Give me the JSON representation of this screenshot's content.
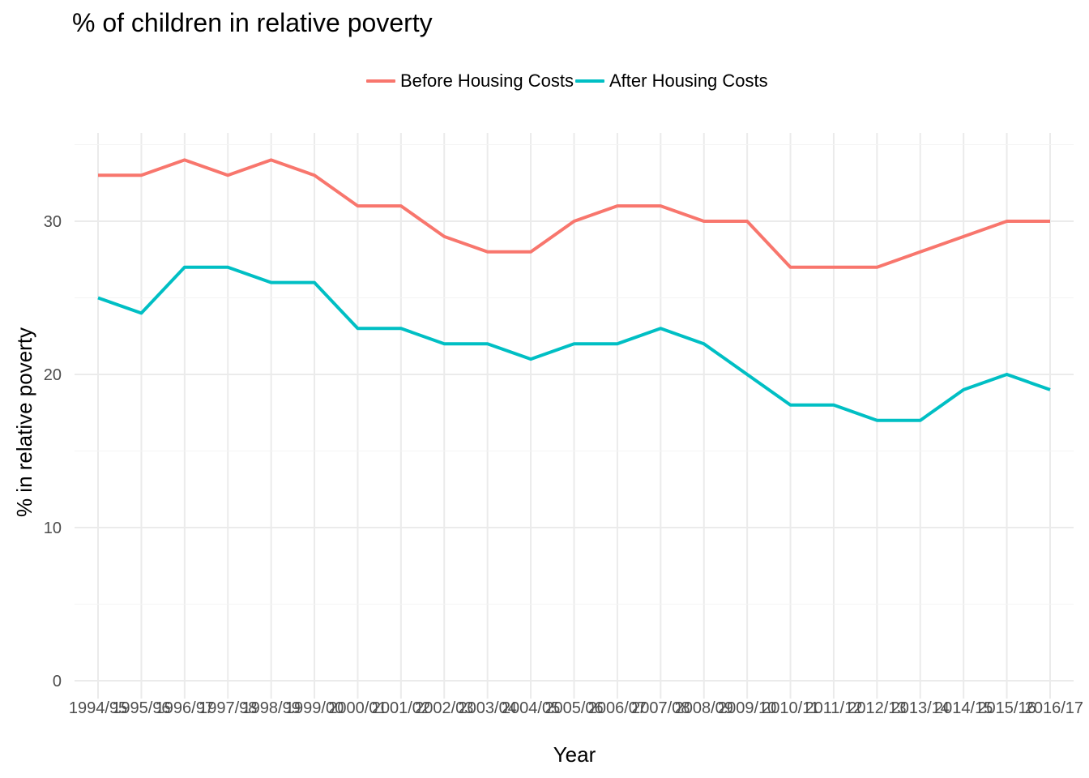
{
  "chart_data": {
    "type": "line",
    "title": "% of children in relative poverty",
    "xlabel": "Year",
    "ylabel": "% in relative poverty",
    "categories": [
      "1994/95",
      "1995/96",
      "1996/97",
      "1997/98",
      "1998/99",
      "1999/00",
      "2000/01",
      "2001/02",
      "2002/03",
      "2003/04",
      "2004/05",
      "2005/06",
      "2006/07",
      "2007/08",
      "2008/09",
      "2009/10",
      "2010/11",
      "2011/12",
      "2012/13",
      "2013/14",
      "2014/15",
      "2015/16",
      "2016/17"
    ],
    "series": [
      {
        "name": "Before Housing Costs",
        "color": "#F8766D",
        "values": [
          33,
          33,
          34,
          33,
          34,
          33,
          31,
          31,
          29,
          28,
          28,
          30,
          31,
          31,
          30,
          30,
          27,
          27,
          27,
          28,
          29,
          30,
          30
        ]
      },
      {
        "name": "After Housing Costs",
        "color": "#00BFC4",
        "values": [
          25,
          24,
          27,
          27,
          26,
          26,
          23,
          23,
          22,
          22,
          21,
          22,
          22,
          23,
          22,
          20,
          18,
          18,
          17,
          17,
          19,
          20,
          19
        ]
      }
    ],
    "ylim": [
      0,
      36.3
    ],
    "yticks": [
      0,
      10,
      20,
      30
    ],
    "grid": true,
    "legend_position": "top"
  }
}
